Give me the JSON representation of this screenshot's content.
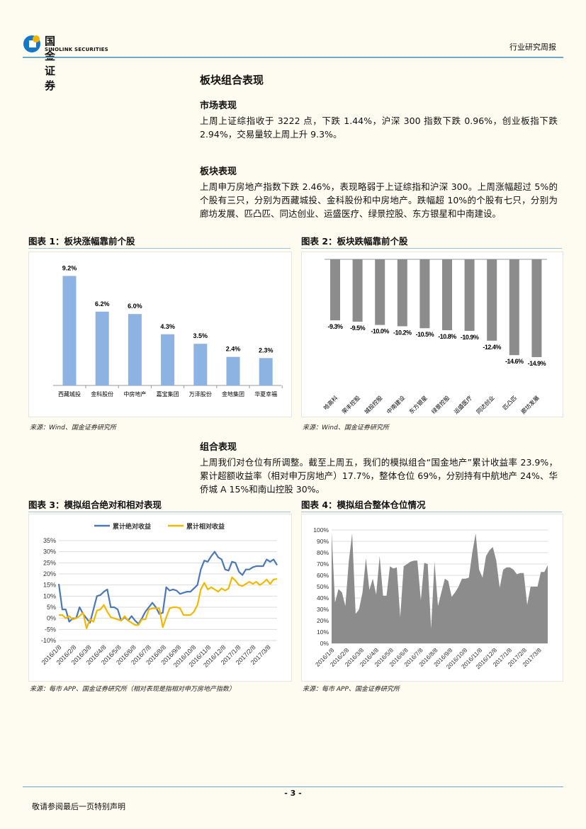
{
  "header": {
    "logo_cn": "国金证券",
    "logo_en": "SINOLINK SECURITIES",
    "report_type": "行业研究周报",
    "rule_color": "#6fa8c8"
  },
  "section_title": "板块组合表现",
  "market": {
    "title": "市场表现",
    "text": "上周上证综指收于 3222 点，下跌 1.44%，沪深 300 指数下跌 0.96%，创业板指下跌 2.94%，交易量较上周上升 9.3%。"
  },
  "sector": {
    "title": "板块表现",
    "text": "上周申万房地产指数下跌 2.46%，表现略弱于上证综指和沪深 300。上周涨幅超过 5%的个股有三只，分别为西藏城投、金科股份和中房地产。跌幅超 10%的个股有七只，分别为廊坊发展、匹凸匹、同达创业、运盛医疗、绿景控股、东方银星和中南建设。"
  },
  "portfolio": {
    "title": "组合表现",
    "text": "上周我们对仓位有所调整。截至上周五，我们的模拟组合“国金地产”累计收益率 23.9%，累计超额收益率（相对申万房地产）17.7%，整体仓位 69%，分别持有中航地产 24%、华侨城 A 15%和南山控股 30%。"
  },
  "figures": [
    {
      "title": "图表 1：板块涨幅靠前个股",
      "source": "来源：Wind、国金证券研究所"
    },
    {
      "title": "图表 2：板块跌幅靠前个股",
      "source": "来源：Wind、国金证券研究所"
    },
    {
      "title": "图表 3：模拟组合绝对和相对表现",
      "source": "来源：每市 APP、国金证券研究所（相对表现是指相对申万房地产指数）"
    },
    {
      "title": "图表 4：模拟组合整体仓位情况",
      "source": "来源：每市 APP、国金证券研究所"
    }
  ],
  "chart_data": [
    {
      "type": "bar",
      "color": "#8db3e2",
      "categories": [
        "西藏城投",
        "金科股份",
        "中房地产",
        "嘉宝集团",
        "万泽股份",
        "金地集团",
        "华夏幸福"
      ],
      "values": [
        9.2,
        6.2,
        6.0,
        4.3,
        3.5,
        2.4,
        2.3
      ],
      "labels": [
        "9.2%",
        "6.2%",
        "6.0%",
        "4.3%",
        "3.5%",
        "2.4%",
        "2.3%"
      ],
      "ylim": [
        0,
        10
      ]
    },
    {
      "type": "bar",
      "color": "#8c8c8c",
      "categories": [
        "哈高科",
        "荣丰控股",
        "城投控股",
        "中南建设",
        "东方银星",
        "绿景控股",
        "运盛医疗",
        "同达创业",
        "匹凸匹",
        "廊坊发展"
      ],
      "values": [
        -9.3,
        -9.5,
        -10.0,
        -10.2,
        -10.5,
        -10.8,
        -10.9,
        -12.4,
        -14.6,
        -14.9
      ],
      "labels": [
        "-9.3%",
        "-9.5%",
        "-10.0%",
        "-10.2%",
        "-10.5%",
        "-10.8%",
        "-10.9%",
        "-12.4%",
        "-14.6%",
        "-14.9%"
      ],
      "ylim": [
        -16,
        0
      ]
    },
    {
      "type": "line",
      "x_ticks": [
        "2016/1/8",
        "2016/2/8",
        "2016/3/8",
        "2016/4/8",
        "2016/5/8",
        "2016/6/8",
        "2016/7/8",
        "2016/8/8",
        "2016/9/8",
        "2016/10/8",
        "2016/11/8",
        "2016/12/8",
        "2017/1/8",
        "2017/2/8",
        "2017/3/8"
      ],
      "y_ticks": [
        "-10%",
        "-5%",
        "0%",
        "5%",
        "10%",
        "15%",
        "20%",
        "25%",
        "30%",
        "35%"
      ],
      "ylim": [
        -10,
        35
      ],
      "grid": true,
      "legend": "top",
      "series": [
        {
          "name": "累计绝对收益",
          "color": "#4a78b8",
          "values": [
            15.5,
            4,
            4,
            -1.5,
            0,
            0,
            5,
            2,
            0,
            -2,
            4,
            10,
            10.5,
            12,
            13,
            5,
            5,
            4,
            -1,
            0.5,
            -1,
            1,
            -1,
            -2.5,
            0,
            3,
            5,
            7,
            5,
            2,
            2.5,
            14,
            12.5,
            13,
            12.5,
            11,
            11.5,
            12,
            12,
            13.5,
            15,
            22,
            26,
            25.5,
            28,
            30,
            27.5,
            26.5,
            22,
            21.5,
            25.5,
            25,
            21,
            19.5,
            22,
            22,
            23,
            23.5,
            23.5,
            23.5,
            26.5,
            25.5,
            26.5,
            24
          ]
        },
        {
          "name": "累计相对收益",
          "color": "#f5b800",
          "values": [
            1.5,
            1.5,
            0,
            1,
            -0.5,
            0,
            1,
            2.5,
            -4.5,
            -0.5,
            -1.5,
            3.5,
            4,
            6,
            3,
            0.5,
            0,
            -0.5,
            -1,
            1,
            -1,
            -2,
            -3,
            -3,
            -0.5,
            -0.5,
            4,
            4.5,
            4.5,
            4.5,
            -4,
            0.5,
            4.5,
            5,
            5,
            4.5,
            1.5,
            1.5,
            1.5,
            3,
            6,
            13,
            16,
            13,
            14,
            13,
            12,
            13.5,
            12.5,
            13.5,
            18.5,
            17,
            15,
            14.5,
            15.5,
            16.5,
            15.5,
            16.5,
            15,
            16,
            17.5,
            15.5,
            17.5,
            17.7
          ]
        }
      ]
    },
    {
      "type": "area",
      "color": "#8c8c8c",
      "x_ticks": [
        "2016/1/8",
        "2016/2/8",
        "2016/3/8",
        "2016/4/8",
        "2016/5/8",
        "2016/6/8",
        "2016/7/8",
        "2016/8/8",
        "2016/9/8",
        "2016/10/8",
        "2016/11/8",
        "2016/12/8",
        "2017/1/8",
        "2017/2/8",
        "2017/3/8"
      ],
      "y_ticks": [
        "0%",
        "10%",
        "20%",
        "30%",
        "40%",
        "50%",
        "60%",
        "70%",
        "80%",
        "90%",
        "100%"
      ],
      "ylim": [
        0,
        100
      ],
      "grid": true,
      "values": [
        98,
        36,
        48,
        45,
        33,
        72,
        97,
        26,
        30,
        45,
        75,
        47,
        57,
        43,
        77,
        42,
        42,
        68,
        66,
        67,
        23,
        68,
        70,
        72,
        73,
        73,
        38,
        71,
        70,
        13,
        72,
        33,
        45,
        57,
        55,
        41,
        45,
        50,
        57,
        57,
        58,
        80,
        97,
        65,
        58,
        77,
        82,
        85,
        73,
        49,
        65,
        67,
        67,
        65,
        61,
        62,
        62,
        34,
        50,
        50,
        50,
        63,
        63,
        69
      ]
    }
  ],
  "footer": {
    "page": "- 3 -",
    "disclaimer": "敬请参阅最后一页特别声明"
  }
}
